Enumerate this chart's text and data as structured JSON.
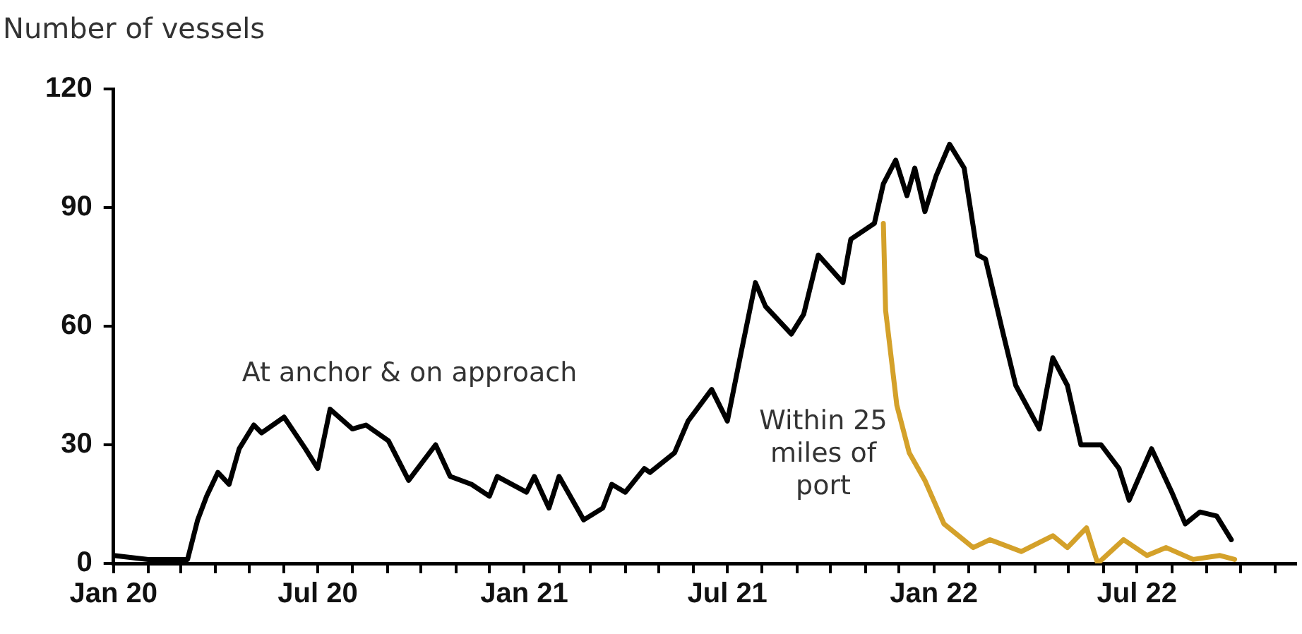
{
  "chart_data": {
    "type": "line",
    "ylabel": "Number of vessels",
    "xlim": [
      "2020-01-01",
      "2022-11-20"
    ],
    "ylim": [
      0,
      120
    ],
    "yticks": [
      0,
      30,
      60,
      90,
      120
    ],
    "xticks": [
      {
        "value": "2020-01-01",
        "label": "Jan 20"
      },
      {
        "value": "2020-02-01",
        "label": null
      },
      {
        "value": "2020-03-01",
        "label": null
      },
      {
        "value": "2020-04-01",
        "label": null
      },
      {
        "value": "2020-05-01",
        "label": null
      },
      {
        "value": "2020-06-01",
        "label": null
      },
      {
        "value": "2020-07-01",
        "label": "Jul 20"
      },
      {
        "value": "2020-08-01",
        "label": null
      },
      {
        "value": "2020-09-01",
        "label": null
      },
      {
        "value": "2020-10-01",
        "label": null
      },
      {
        "value": "2020-11-01",
        "label": null
      },
      {
        "value": "2020-12-01",
        "label": null
      },
      {
        "value": "2021-01-01",
        "label": "Jan 21"
      },
      {
        "value": "2021-02-01",
        "label": null
      },
      {
        "value": "2021-03-01",
        "label": null
      },
      {
        "value": "2021-04-01",
        "label": null
      },
      {
        "value": "2021-05-01",
        "label": null
      },
      {
        "value": "2021-06-01",
        "label": null
      },
      {
        "value": "2021-07-01",
        "label": "Jul 21"
      },
      {
        "value": "2021-08-01",
        "label": null
      },
      {
        "value": "2021-09-01",
        "label": null
      },
      {
        "value": "2021-10-01",
        "label": null
      },
      {
        "value": "2021-11-01",
        "label": null
      },
      {
        "value": "2021-12-01",
        "label": null
      },
      {
        "value": "2022-01-01",
        "label": "Jan 22"
      },
      {
        "value": "2022-02-01",
        "label": null
      },
      {
        "value": "2022-03-01",
        "label": null
      },
      {
        "value": "2022-04-01",
        "label": null
      },
      {
        "value": "2022-05-01",
        "label": null
      },
      {
        "value": "2022-06-01",
        "label": null
      },
      {
        "value": "2022-07-01",
        "label": "Jul 22"
      },
      {
        "value": "2022-08-01",
        "label": null
      },
      {
        "value": "2022-09-01",
        "label": null
      },
      {
        "value": "2022-10-01",
        "label": null
      },
      {
        "value": "2022-11-01",
        "label": null
      }
    ],
    "grid": false,
    "legend": false,
    "marker": "none",
    "line_style": "solid",
    "series": [
      {
        "name": "At anchor & on approach",
        "color": "#000000",
        "x": [
          "2020-01-01",
          "2020-02-01",
          "2020-03-07",
          "2020-03-16",
          "2020-03-24",
          "2020-04-03",
          "2020-04-13",
          "2020-04-22",
          "2020-05-05",
          "2020-05-12",
          "2020-06-01",
          "2020-06-20",
          "2020-07-01",
          "2020-07-12",
          "2020-08-01",
          "2020-08-13",
          "2020-09-02",
          "2020-09-20",
          "2020-10-14",
          "2020-10-27",
          "2020-11-15",
          "2020-12-01",
          "2020-12-08",
          "2021-01-03",
          "2021-01-10",
          "2021-01-23",
          "2021-02-01",
          "2021-02-23",
          "2021-03-12",
          "2021-03-20",
          "2021-04-01",
          "2021-04-18",
          "2021-04-23",
          "2021-05-15",
          "2021-05-27",
          "2021-06-17",
          "2021-07-01",
          "2021-07-13",
          "2021-07-26",
          "2021-08-04",
          "2021-08-27",
          "2021-09-07",
          "2021-09-20",
          "2021-10-12",
          "2021-10-19",
          "2021-11-09",
          "2021-11-17",
          "2021-11-28",
          "2021-12-08",
          "2021-12-15",
          "2021-12-24",
          "2022-01-03",
          "2022-01-15",
          "2022-01-28",
          "2022-02-09",
          "2022-02-16",
          "2022-03-03",
          "2022-03-15",
          "2022-04-05",
          "2022-04-17",
          "2022-04-30",
          "2022-05-12",
          "2022-05-30",
          "2022-06-15",
          "2022-06-24",
          "2022-07-14",
          "2022-08-01",
          "2022-08-13",
          "2022-08-26",
          "2022-09-10",
          "2022-09-23"
        ],
        "values": [
          2,
          1,
          1,
          11,
          17,
          23,
          20,
          29,
          35,
          33,
          37,
          29,
          24,
          39,
          34,
          35,
          31,
          21,
          30,
          22,
          20,
          17,
          22,
          18,
          22,
          14,
          22,
          11,
          14,
          20,
          18,
          24,
          23,
          28,
          36,
          44,
          36,
          53,
          71,
          65,
          58,
          63,
          78,
          71,
          82,
          86,
          96,
          102,
          93,
          100,
          89,
          98,
          106,
          100,
          78,
          77,
          59,
          45,
          34,
          52,
          45,
          30,
          30,
          24,
          16,
          29,
          18,
          10,
          13,
          12,
          6
        ]
      },
      {
        "name": "Within 25 miles of port",
        "color": "#d4a12a",
        "x": [
          "2021-11-17",
          "2021-11-19",
          "2021-11-29",
          "2021-12-10",
          "2021-12-24",
          "2022-01-10",
          "2022-02-05",
          "2022-02-20",
          "2022-03-20",
          "2022-04-17",
          "2022-04-30",
          "2022-05-17",
          "2022-05-27",
          "2022-06-19",
          "2022-07-10",
          "2022-07-27",
          "2022-08-20",
          "2022-09-13",
          "2022-09-26"
        ],
        "values": [
          86,
          64,
          40,
          28,
          21,
          10,
          4,
          6,
          3,
          7,
          4,
          9,
          0,
          6,
          2,
          4,
          1,
          2,
          1
        ]
      }
    ]
  }
}
